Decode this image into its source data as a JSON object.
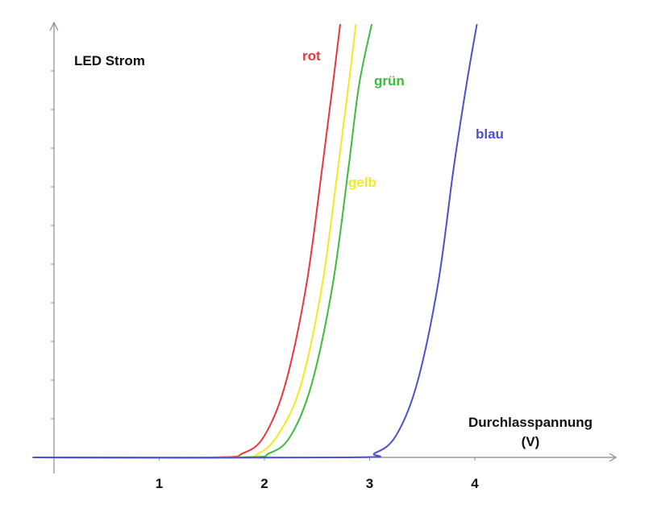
{
  "chart_data": {
    "type": "line",
    "title": "",
    "ylabel": "LED Strom",
    "xlabel_line1": "Durchlasspannung",
    "xlabel_line2": "(V)",
    "xlim": [
      -0.2,
      5.4
    ],
    "ylim": [
      0,
      100
    ],
    "x_ticks": [
      "1",
      "2",
      "3",
      "4"
    ],
    "x_tick_values": [
      1,
      2,
      3,
      4
    ],
    "grid": false,
    "series": [
      {
        "name": "rot",
        "color": "#e8383d",
        "x": [
          1.5,
          1.8,
          2.0,
          2.2,
          2.4,
          2.55,
          2.65,
          2.72
        ],
        "y": [
          0,
          1,
          5,
          17,
          40,
          67,
          86,
          100
        ]
      },
      {
        "name": "gelb",
        "color": "#f2ea1f",
        "x": [
          1.65,
          1.95,
          2.15,
          2.35,
          2.55,
          2.7,
          2.8,
          2.87
        ],
        "y": [
          0,
          1,
          6,
          17,
          40,
          67,
          86,
          100
        ]
      },
      {
        "name": "grün",
        "color": "#3dbb3d",
        "x": [
          1.75,
          2.05,
          2.25,
          2.45,
          2.65,
          2.8,
          2.9,
          3.02
        ],
        "y": [
          0,
          1,
          5,
          17,
          40,
          67,
          86,
          100
        ]
      },
      {
        "name": "blau",
        "color": "#4d4fd1",
        "x": [
          2.8,
          3.05,
          3.25,
          3.45,
          3.65,
          3.8,
          3.92,
          4.02
        ],
        "y": [
          0,
          1,
          5,
          17,
          40,
          67,
          86,
          100
        ]
      }
    ]
  }
}
